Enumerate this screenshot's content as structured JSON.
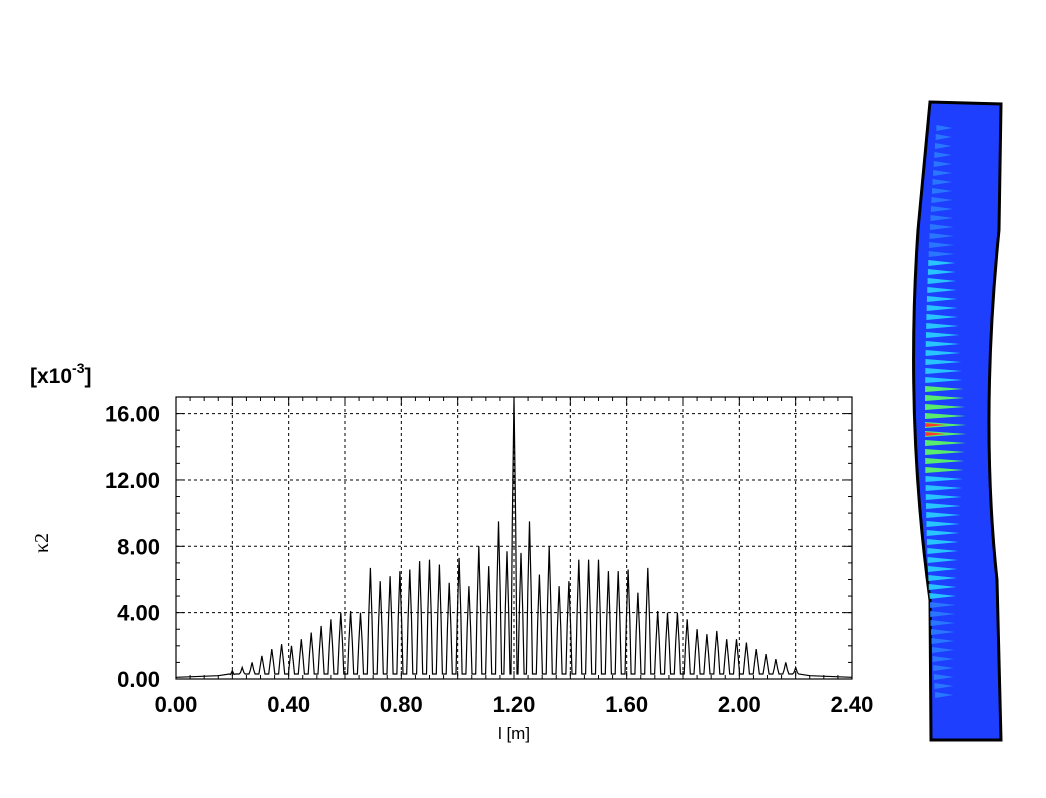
{
  "chart_data": {
    "type": "line",
    "title": "",
    "xlabel": "l [m]",
    "ylabel": "κ2",
    "y_scale_label": "[x10^-3]",
    "y_scale_base": "[x10",
    "y_scale_exp": "-3",
    "y_scale_close": "]",
    "xlim": [
      0.0,
      2.4
    ],
    "ylim": [
      0.0,
      17.0
    ],
    "x_ticks": [
      "0.00",
      "0.40",
      "0.80",
      "1.20",
      "1.60",
      "2.00",
      "2.40"
    ],
    "y_ticks": [
      "0.00",
      "4.00",
      "8.00",
      "12.00",
      "16.00"
    ],
    "grid": true,
    "series": [
      {
        "peaks_x": [
          0.2,
          0.235,
          0.27,
          0.305,
          0.34,
          0.375,
          0.41,
          0.445,
          0.48,
          0.515,
          0.55,
          0.585,
          0.62,
          0.655,
          0.69,
          0.725,
          0.76,
          0.795,
          0.83,
          0.865,
          0.9,
          0.935,
          0.97,
          1.005,
          1.04,
          1.075,
          1.11,
          1.145,
          1.175,
          1.2,
          1.225,
          1.255,
          1.29,
          1.325,
          1.36,
          1.395,
          1.43,
          1.465,
          1.5,
          1.535,
          1.57,
          1.605,
          1.64,
          1.675,
          1.71,
          1.745,
          1.78,
          1.815,
          1.85,
          1.885,
          1.92,
          1.955,
          1.99,
          2.025,
          2.06,
          2.095,
          2.13,
          2.165,
          2.2
        ],
        "peaks_y": [
          0.5,
          0.7,
          1.0,
          1.4,
          1.8,
          2.1,
          2.0,
          2.4,
          2.8,
          3.2,
          3.6,
          4.0,
          4.1,
          4.0,
          6.7,
          5.9,
          6.2,
          6.5,
          6.6,
          7.1,
          7.2,
          6.9,
          5.8,
          7.3,
          5.6,
          8.0,
          6.8,
          9.5,
          7.7,
          17.0,
          7.6,
          9.5,
          6.3,
          8.0,
          5.6,
          5.9,
          7.2,
          7.2,
          7.2,
          6.5,
          6.5,
          6.6,
          5.2,
          6.7,
          4.1,
          4.0,
          4.0,
          3.6,
          3.0,
          2.7,
          2.9,
          2.4,
          2.4,
          2.2,
          1.8,
          1.5,
          1.2,
          1.0,
          0.7
        ],
        "baseline": 0.1,
        "trough": 0.3,
        "color": "#000000"
      }
    ]
  },
  "side_image": {
    "description_icon": "stress-distribution-strip",
    "colors": {
      "low": "#1f3fff",
      "mid": "#29d3ff",
      "high": "#5dff5d",
      "peak": "#ff3a2a",
      "edge": "#000000"
    }
  }
}
